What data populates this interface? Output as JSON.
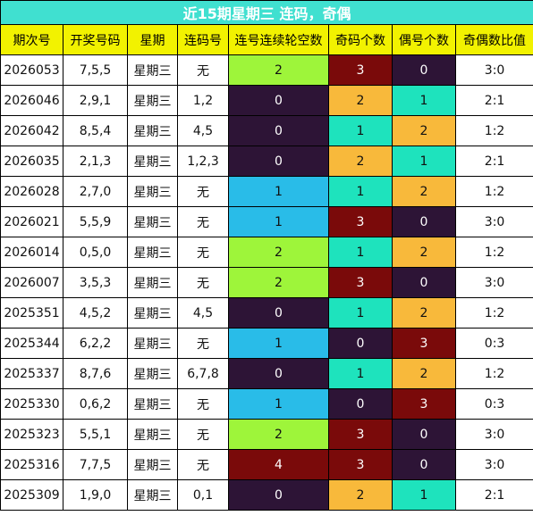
{
  "title": "近15期星期三 连码，奇偶",
  "headers": [
    "期次号",
    "开奖号码",
    "星期",
    "连码号",
    "连号连续轮空数",
    "奇码个数",
    "偶号个数",
    "奇偶数比值"
  ],
  "colors": {
    "title_bg": "#40e0d0",
    "header_bg": "#f2f200",
    "gap_value_colors": {
      "0": "#2d1436",
      "1": "#29bce8",
      "2": "#9ef53a",
      "4": "#7a0a0a"
    },
    "count_value_colors": {
      "0": "#2d1436",
      "1": "#1ee3bd",
      "2": "#f8b93b",
      "3": "#7a0a0a"
    }
  },
  "rows": [
    {
      "issue": "2026053",
      "numbers": "7,5,5",
      "weekday": "星期三",
      "consecutive": "无",
      "gap": "2",
      "odd": "3",
      "even": "0",
      "ratio": "3:0"
    },
    {
      "issue": "2026046",
      "numbers": "2,9,1",
      "weekday": "星期三",
      "consecutive": "1,2",
      "gap": "0",
      "odd": "2",
      "even": "1",
      "ratio": "2:1"
    },
    {
      "issue": "2026042",
      "numbers": "8,5,4",
      "weekday": "星期三",
      "consecutive": "4,5",
      "gap": "0",
      "odd": "1",
      "even": "2",
      "ratio": "1:2"
    },
    {
      "issue": "2026035",
      "numbers": "2,1,3",
      "weekday": "星期三",
      "consecutive": "1,2,3",
      "gap": "0",
      "odd": "2",
      "even": "1",
      "ratio": "2:1"
    },
    {
      "issue": "2026028",
      "numbers": "2,7,0",
      "weekday": "星期三",
      "consecutive": "无",
      "gap": "1",
      "odd": "1",
      "even": "2",
      "ratio": "1:2"
    },
    {
      "issue": "2026021",
      "numbers": "5,5,9",
      "weekday": "星期三",
      "consecutive": "无",
      "gap": "1",
      "odd": "3",
      "even": "0",
      "ratio": "3:0"
    },
    {
      "issue": "2026014",
      "numbers": "0,5,0",
      "weekday": "星期三",
      "consecutive": "无",
      "gap": "2",
      "odd": "1",
      "even": "2",
      "ratio": "1:2"
    },
    {
      "issue": "2026007",
      "numbers": "3,5,3",
      "weekday": "星期三",
      "consecutive": "无",
      "gap": "2",
      "odd": "3",
      "even": "0",
      "ratio": "3:0"
    },
    {
      "issue": "2025351",
      "numbers": "4,5,2",
      "weekday": "星期三",
      "consecutive": "4,5",
      "gap": "0",
      "odd": "1",
      "even": "2",
      "ratio": "1:2"
    },
    {
      "issue": "2025344",
      "numbers": "6,2,2",
      "weekday": "星期三",
      "consecutive": "无",
      "gap": "1",
      "odd": "0",
      "even": "3",
      "ratio": "0:3"
    },
    {
      "issue": "2025337",
      "numbers": "8,7,6",
      "weekday": "星期三",
      "consecutive": "6,7,8",
      "gap": "0",
      "odd": "1",
      "even": "2",
      "ratio": "1:2"
    },
    {
      "issue": "2025330",
      "numbers": "0,6,2",
      "weekday": "星期三",
      "consecutive": "无",
      "gap": "1",
      "odd": "0",
      "even": "3",
      "ratio": "0:3"
    },
    {
      "issue": "2025323",
      "numbers": "5,5,1",
      "weekday": "星期三",
      "consecutive": "无",
      "gap": "2",
      "odd": "3",
      "even": "0",
      "ratio": "3:0"
    },
    {
      "issue": "2025316",
      "numbers": "7,7,5",
      "weekday": "星期三",
      "consecutive": "无",
      "gap": "4",
      "odd": "3",
      "even": "0",
      "ratio": "3:0"
    },
    {
      "issue": "2025309",
      "numbers": "1,9,0",
      "weekday": "星期三",
      "consecutive": "0,1",
      "gap": "0",
      "odd": "2",
      "even": "1",
      "ratio": "2:1"
    }
  ]
}
